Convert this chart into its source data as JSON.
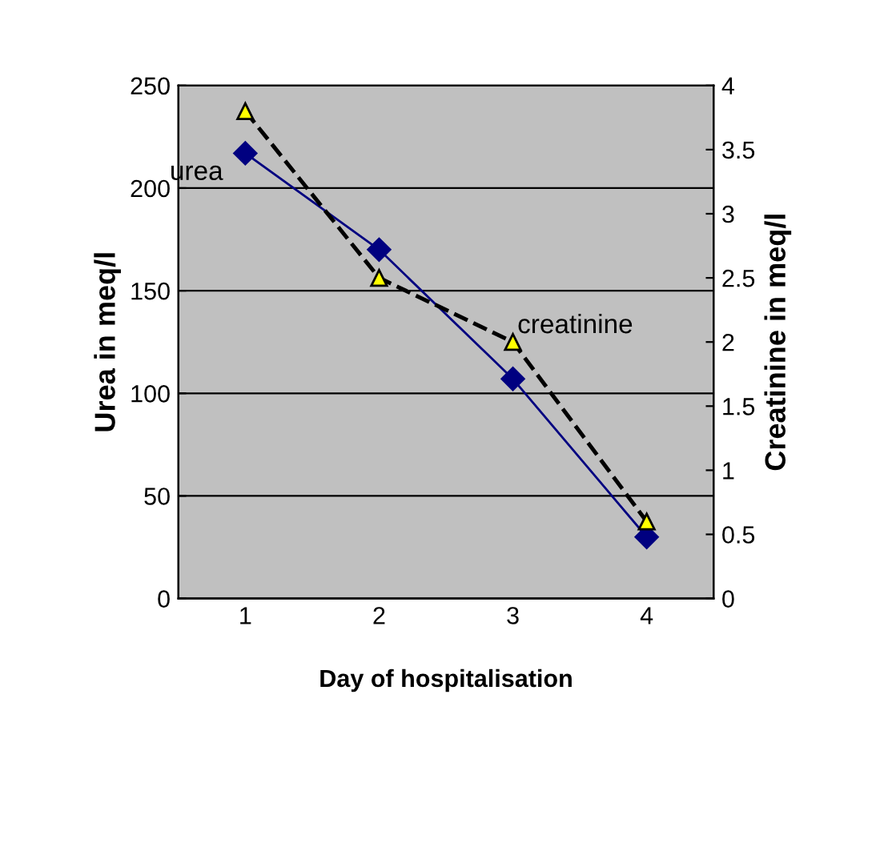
{
  "chart_data": {
    "type": "line",
    "xlabel": "Day of hospitalisation",
    "ylabel": "Urea in meq/l",
    "y2label": "Creatinine in meq/l",
    "categories": [
      "1",
      "2",
      "3",
      "4"
    ],
    "series": [
      {
        "name": "urea",
        "color": "#000080",
        "values": [
          217,
          170,
          107,
          30
        ],
        "marker": "diamond",
        "line_style": "solid"
      },
      {
        "name": "creatinine",
        "color": "#ffff00",
        "values": [
          3.8,
          2.5,
          2.0,
          0.6
        ],
        "marker": "triangle",
        "line_style": "dashed",
        "axis": "y2"
      }
    ],
    "ylim": [
      0,
      250
    ],
    "yticks": [
      0,
      50,
      100,
      150,
      200,
      250
    ],
    "y2lim": [
      0,
      4
    ],
    "y2ticks": [
      0,
      0.5,
      1,
      1.5,
      2,
      2.5,
      3,
      3.5,
      4
    ],
    "grid": "y"
  }
}
